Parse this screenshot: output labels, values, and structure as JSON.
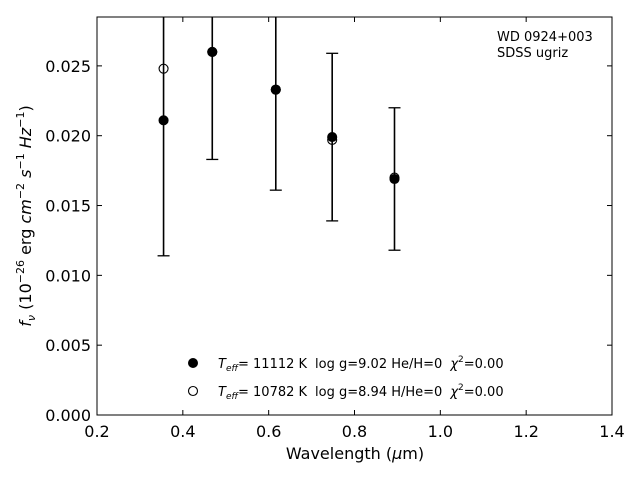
{
  "chart_data": {
    "type": "scatter",
    "annotation_lines": [
      "WD 0924+003",
      "SDSS ugriz"
    ],
    "xlabel": "Wavelength (μm)",
    "ylabel": "f_ν (10⁻²⁶ erg cm⁻² s⁻¹ Hz⁻¹)",
    "xlim": [
      0.2,
      1.4
    ],
    "ylim": [
      0.0,
      0.0285
    ],
    "xticks": [
      0.2,
      0.4,
      0.6,
      0.8,
      1.0,
      1.2,
      1.4
    ],
    "xtick_labels": [
      "0.2",
      "0.4",
      "0.6",
      "0.8",
      "1.0",
      "1.2",
      "1.4"
    ],
    "yticks": [
      0.0,
      0.005,
      0.01,
      0.015,
      0.02,
      0.025
    ],
    "ytick_labels": [
      "0.000",
      "0.005",
      "0.010",
      "0.015",
      "0.020",
      "0.025"
    ],
    "grid": false,
    "legend_position": "lower-center",
    "observed": {
      "x": [
        0.3551,
        0.4686,
        0.6166,
        0.748,
        0.8932
      ],
      "y": [
        0.0211,
        0.026,
        0.0233,
        0.0199,
        0.0169
      ],
      "yerr": [
        0.0097,
        0.0077,
        0.0072,
        0.006,
        0.0051
      ]
    },
    "series": [
      {
        "name": "T_eff= 11112 K  log g=9.02  He/H=0  χ²=0.00",
        "marker": "filled-circle",
        "x": [
          0.3551,
          0.4686,
          0.6166,
          0.748,
          0.8932
        ],
        "y": [
          0.0211,
          0.026,
          0.0233,
          0.0199,
          0.0169
        ]
      },
      {
        "name": "T_eff= 10782 K  log g=8.94  H/He=0  χ²=0.00",
        "marker": "open-circle",
        "x": [
          0.3551,
          0.4686,
          0.6166,
          0.748,
          0.8932
        ],
        "y": [
          0.0248,
          0.026,
          0.0233,
          0.0197,
          0.017
        ]
      }
    ],
    "legend": {
      "entries": [
        {
          "marker": "filled-circle",
          "teff_value": "= 11112 K",
          "rest": "log g=9.02  He/H=0",
          "chi_value": "=0.00"
        },
        {
          "marker": "open-circle",
          "teff_value": "= 10782 K",
          "rest": "log g=8.94  H/He=0",
          "chi_value": "=0.00"
        }
      ]
    }
  }
}
